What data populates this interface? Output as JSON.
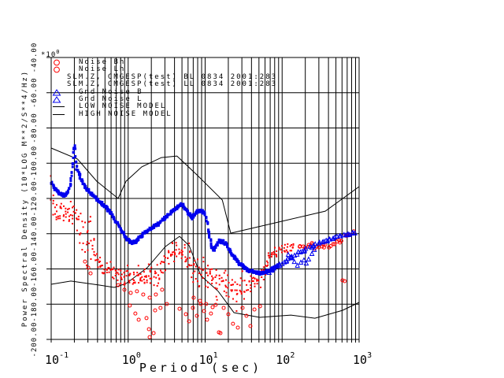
{
  "window": {
    "background": "#ffffff"
  },
  "colors": {
    "red": "#ff0000",
    "blue": "#0000ee",
    "line": "#000000"
  },
  "legend": {
    "rows": [
      {
        "symbol": "red-circle",
        "label": "Noise Bh"
      },
      {
        "symbol": "red-circle",
        "label": "Noise Lh"
      },
      {
        "symbol": "none",
        "label": "SLM.Z, CMGESP(test) BL 0834 2001:283"
      },
      {
        "symbol": "none",
        "label": "SLM.Z, CMGESP(test) LL 0834 2001:283"
      },
      {
        "symbol": "blue-triangle",
        "label": "Gnd Noise B"
      },
      {
        "symbol": "blue-triangle",
        "label": "Gnd Noise L"
      },
      {
        "symbol": "black-line",
        "label": "LOW NOISE MODEL"
      },
      {
        "symbol": "black-line",
        "label": "HIGH NOISE MODEL"
      }
    ]
  },
  "axis": {
    "x_title": "Period (sec)",
    "y_title": "Power Spectral Density (10*LOG M**2/S**4/Hz)",
    "y_scale": {
      "base": "*10",
      "exp": "0"
    }
  },
  "chart_data": {
    "type": "scatter",
    "title": "",
    "xlabel": "Period (sec)",
    "ylabel": "Power Spectral Density (10*LOG M**2/S**4/Hz)  *10^0",
    "x_scale": "log",
    "xlim": [
      0.1,
      1000
    ],
    "ylim": [
      -200,
      -40
    ],
    "grid": "log minor vertical lines, horizontal every 20 dB",
    "legend_position": "top-left-inside",
    "x_ticks": [
      {
        "base": "10",
        "exp": "-1",
        "value": 0.1
      },
      {
        "base": "10",
        "exp": "0",
        "value": 1
      },
      {
        "base": "10",
        "exp": "1",
        "value": 10
      },
      {
        "base": "10",
        "exp": "2",
        "value": 100
      },
      {
        "base": "10",
        "exp": "3",
        "value": 1000
      }
    ],
    "y_ticks": [
      {
        "value": -40,
        "label": "-40.00"
      },
      {
        "value": -60,
        "label": "-60.00"
      },
      {
        "value": -80,
        "label": "-80.00"
      },
      {
        "value": -100,
        "label": "-100.00"
      },
      {
        "value": -120,
        "label": "-120.00"
      },
      {
        "value": -140,
        "label": "-140.00"
      },
      {
        "value": -160,
        "label": "-160.00"
      },
      {
        "value": -180,
        "label": "-180.00"
      },
      {
        "value": -200,
        "label": "-200.00"
      }
    ],
    "series": [
      {
        "name": "HIGH NOISE MODEL",
        "kind": "line",
        "color": "#000000",
        "points": [
          [
            0.1,
            -91.4
          ],
          [
            0.22,
            -97.7
          ],
          [
            0.39,
            -110.2
          ],
          [
            0.74,
            -120.0
          ],
          [
            0.94,
            -110.2
          ],
          [
            1.5,
            -102.1
          ],
          [
            2.7,
            -96.8
          ],
          [
            4.3,
            -95.9
          ],
          [
            7.8,
            -106.6
          ],
          [
            16.7,
            -120.9
          ],
          [
            21.5,
            -139.7
          ],
          [
            364,
            -127.2
          ],
          [
            1000,
            -113.3
          ]
        ]
      },
      {
        "name": "LOW NOISE MODEL",
        "kind": "line",
        "color": "#000000",
        "points": [
          [
            0.1,
            -168.7
          ],
          [
            0.18,
            -166.9
          ],
          [
            0.43,
            -169.2
          ],
          [
            0.66,
            -170.5
          ],
          [
            0.94,
            -168.3
          ],
          [
            1.77,
            -159.3
          ],
          [
            3.04,
            -147.3
          ],
          [
            4.65,
            -141.5
          ],
          [
            6.2,
            -146.8
          ],
          [
            8.8,
            -163.8
          ],
          [
            14.8,
            -172.7
          ],
          [
            23.7,
            -184.8
          ],
          [
            51,
            -187.5
          ],
          [
            130,
            -186.2
          ],
          [
            267,
            -188.0
          ],
          [
            608,
            -183.5
          ],
          [
            1000,
            -179.0
          ]
        ]
      },
      {
        "name": "Noise Bh",
        "kind": "scatter",
        "color": "#ff0000",
        "marker": "square",
        "size": 2,
        "step": 1.6,
        "density": 2,
        "default_spread": 4,
        "trend": [
          [
            0.098,
            -106.6,
            11.2
          ],
          [
            0.112,
            -127.2,
            8
          ],
          [
            0.142,
            -128.9,
            8
          ],
          [
            0.18,
            -128.1,
            7.2
          ],
          [
            0.218,
            -130.3,
            9
          ],
          [
            0.263,
            -140.6,
            15.6
          ],
          [
            0.303,
            -142.4,
            17.9
          ],
          [
            0.332,
            -144.1,
            16
          ],
          [
            0.401,
            -154.9,
            5.4
          ],
          [
            0.485,
            -159.3,
            4.5
          ],
          [
            0.614,
            -160.2,
            5.4
          ],
          [
            0.74,
            -162.9,
            6.3
          ],
          [
            0.894,
            -164.7,
            7.2
          ],
          [
            1.08,
            -164.7,
            7.2
          ],
          [
            1.3,
            -163.8,
            7.2
          ],
          [
            1.57,
            -164.7,
            8
          ],
          [
            1.9,
            -164.7,
            9
          ],
          [
            2.29,
            -163.8,
            8
          ],
          [
            2.76,
            -158.4,
            9.8
          ],
          [
            3.33,
            -152.6,
            9
          ],
          [
            4.03,
            -148.2,
            7.2
          ],
          [
            4.86,
            -149.5,
            9
          ],
          [
            5.87,
            -154.9,
            12.5
          ],
          [
            7.09,
            -159.3,
            13.4
          ],
          [
            8.56,
            -161.6,
            13.4
          ],
          [
            10.3,
            -163.8,
            12.5
          ],
          [
            12.5,
            -164.7,
            11.2
          ],
          [
            15.1,
            -167.4,
            11.2
          ],
          [
            18.2,
            -169.2,
            11.2
          ],
          [
            22,
            -171.8,
            12.5
          ],
          [
            26.6,
            -173.6,
            13.4
          ],
          [
            32.1,
            -169.2,
            9.8
          ],
          [
            38.7,
            -167.4,
            6.7
          ],
          [
            46.8,
            -166.5,
            6.3
          ],
          [
            56.5,
            -164.7,
            6.3
          ],
          [
            68.7,
            -151.3,
            4.5
          ],
          [
            82.8,
            -150.4,
            4
          ],
          [
            99.9,
            -149.5,
            3.6
          ],
          [
            120,
            -148.6,
            3.6
          ],
          [
            144,
            -146.8,
            3.1
          ]
        ]
      },
      {
        "name": "Noise Lh",
        "kind": "scatter",
        "color": "#ff0000",
        "marker": "circle",
        "size": 2,
        "step": 3,
        "density": 1,
        "default_spread": 2,
        "trend": [
          [
            166,
            -147.3,
            2.7
          ],
          [
            211,
            -146.4,
            2.7
          ],
          [
            267,
            -147.3,
            2.7
          ],
          [
            339,
            -146.8,
            2.2
          ],
          [
            428,
            -145.9,
            2.2
          ],
          [
            541,
            -144.1,
            2.7
          ],
          [
            684,
            -141.9,
            1.8
          ],
          [
            864,
            -139.2,
            1.3
          ]
        ],
        "outliers": [
          [
            1.05,
            -180.8
          ],
          [
            1.24,
            -185.3
          ],
          [
            1.37,
            -188.8
          ],
          [
            1.73,
            -187.9
          ],
          [
            1.86,
            -194.2
          ],
          [
            1.9,
            -198.7
          ],
          [
            2.24,
            -183.5
          ],
          [
            2.63,
            -182.1
          ],
          [
            3.18,
            -179.9
          ],
          [
            4.65,
            -182.6
          ],
          [
            5.62,
            -185.7
          ],
          [
            6.18,
            -189.7
          ],
          [
            6.93,
            -182.1
          ],
          [
            7.81,
            -186.6
          ],
          [
            8.78,
            -179.9
          ],
          [
            9.66,
            -183.9
          ],
          [
            10.6,
            -188.8
          ],
          [
            11.9,
            -185.3
          ],
          [
            13.7,
            -180.4
          ],
          [
            15.1,
            -196.0
          ],
          [
            17.4,
            -182.1
          ],
          [
            20,
            -185.7
          ],
          [
            23,
            -191.1
          ],
          [
            26.6,
            -193.3
          ],
          [
            30.6,
            -182.1
          ],
          [
            34.4,
            -186.6
          ],
          [
            38.7,
            -192.4
          ],
          [
            43.7,
            -183.0
          ],
          [
            51.6,
            -181.2
          ],
          [
            2.14,
            -196.4
          ],
          [
            15.8,
            -196.4
          ],
          [
            608,
            -166.5
          ],
          [
            650,
            -166.9
          ],
          [
            0.275,
            -155.8
          ],
          [
            0.303,
            -159.3
          ],
          [
            0.325,
            -162.5
          ],
          [
            0.74,
            -169.2
          ],
          [
            0.894,
            -171.8
          ],
          [
            1.08,
            -173.6
          ],
          [
            1.3,
            -172.7
          ],
          [
            1.57,
            -174.5
          ],
          [
            1.9,
            -176.3
          ],
          [
            2.29,
            -174.5
          ],
          [
            2.76,
            -171.8
          ],
          [
            7.09,
            -176.3
          ],
          [
            8.56,
            -178.1
          ],
          [
            10.3,
            -179.9
          ],
          [
            12.5,
            -181.7
          ]
        ]
      },
      {
        "name": "Gnd Noise B",
        "kind": "scatter",
        "color": "#0000ee",
        "marker": "square",
        "size": 3,
        "step": 1.2,
        "density": 3,
        "default_spread": 1.2,
        "trend": [
          [
            0.1,
            -111.1
          ],
          [
            0.112,
            -114.6
          ],
          [
            0.129,
            -117.3
          ],
          [
            0.149,
            -118.2
          ],
          [
            0.168,
            -116.0
          ],
          [
            0.18,
            -110.2,
            2
          ],
          [
            0.189,
            -101.2,
            6.3
          ],
          [
            0.193,
            -93.6,
            7.2
          ],
          [
            0.198,
            -90.5,
            5.4
          ],
          [
            0.203,
            -92.3,
            5.4
          ],
          [
            0.207,
            -95.9,
            6.3
          ],
          [
            0.212,
            -100.3,
            5.4
          ],
          [
            0.223,
            -104.8,
            3
          ],
          [
            0.239,
            -108.4,
            2
          ],
          [
            0.263,
            -112.0,
            1.5
          ],
          [
            0.296,
            -115.1
          ],
          [
            0.34,
            -117.8
          ],
          [
            0.392,
            -120.5
          ],
          [
            0.452,
            -122.7
          ],
          [
            0.52,
            -124.9
          ],
          [
            0.599,
            -128.5
          ],
          [
            0.707,
            -133.4
          ],
          [
            0.833,
            -138.8
          ],
          [
            0.961,
            -142.8
          ],
          [
            1.11,
            -145.0
          ],
          [
            1.27,
            -144.6
          ],
          [
            1.46,
            -141.5
          ],
          [
            1.73,
            -138.8
          ],
          [
            2.03,
            -136.5
          ],
          [
            2.46,
            -134.3
          ],
          [
            2.97,
            -131.2
          ],
          [
            3.51,
            -128.5
          ],
          [
            4.14,
            -125.8
          ],
          [
            4.65,
            -123.6
          ],
          [
            5.11,
            -124.0
          ],
          [
            5.62,
            -126.3
          ],
          [
            6.18,
            -128.5
          ],
          [
            6.66,
            -131.2
          ],
          [
            7.3,
            -128.9
          ],
          [
            7.99,
            -127.2
          ],
          [
            8.78,
            -127.2
          ],
          [
            9.66,
            -128.1
          ],
          [
            10.4,
            -132.1
          ],
          [
            11.2,
            -140.1,
            2
          ],
          [
            11.9,
            -145.9
          ],
          [
            12.8,
            -149.5
          ],
          [
            14,
            -146.4
          ],
          [
            15.4,
            -144.1
          ],
          [
            17.4,
            -145.0
          ],
          [
            19.1,
            -146.8
          ],
          [
            20.9,
            -149.5
          ],
          [
            23.6,
            -153.1
          ],
          [
            26.7,
            -155.8
          ],
          [
            29.9,
            -158.0
          ],
          [
            33.6,
            -159.8
          ],
          [
            38.7,
            -161.1
          ],
          [
            44.7,
            -162.0
          ],
          [
            51.6,
            -162.5
          ],
          [
            59.5,
            -162.0
          ],
          [
            68.7,
            -161.1
          ],
          [
            79.2,
            -159.3
          ],
          [
            91.5,
            -158.0
          ]
        ]
      },
      {
        "name": "Gnd Noise L",
        "kind": "scatter",
        "color": "#0000ee",
        "marker": "triangle",
        "size": 2.5,
        "step": 2.5,
        "density": 1,
        "default_spread": 0.8,
        "trend": [
          [
            68.7,
            -161.6
          ],
          [
            82.8,
            -158.9
          ],
          [
            99.5,
            -156.7
          ],
          [
            120,
            -154.4
          ],
          [
            144,
            -152.2
          ],
          [
            169,
            -150.4
          ],
          [
            199,
            -149.0
          ],
          [
            234,
            -147.3
          ],
          [
            275,
            -145.9
          ],
          [
            324,
            -144.6
          ],
          [
            381,
            -143.7
          ],
          [
            448,
            -142.8
          ],
          [
            527,
            -141.5
          ],
          [
            620,
            -140.6
          ],
          [
            729,
            -140.2
          ],
          [
            840,
            -139.7
          ],
          [
            944,
            -139.7
          ]
        ],
        "outliers": [
          [
            120,
            -151.8
          ],
          [
            132,
            -153.5
          ],
          [
            144,
            -155.8
          ],
          [
            158,
            -158.0
          ],
          [
            175,
            -156.2
          ],
          [
            192,
            -154.9
          ],
          [
            206,
            -156.7
          ],
          [
            221,
            -154.4
          ],
          [
            244,
            -151.3
          ],
          [
            262,
            -149.0
          ]
        ]
      }
    ]
  }
}
